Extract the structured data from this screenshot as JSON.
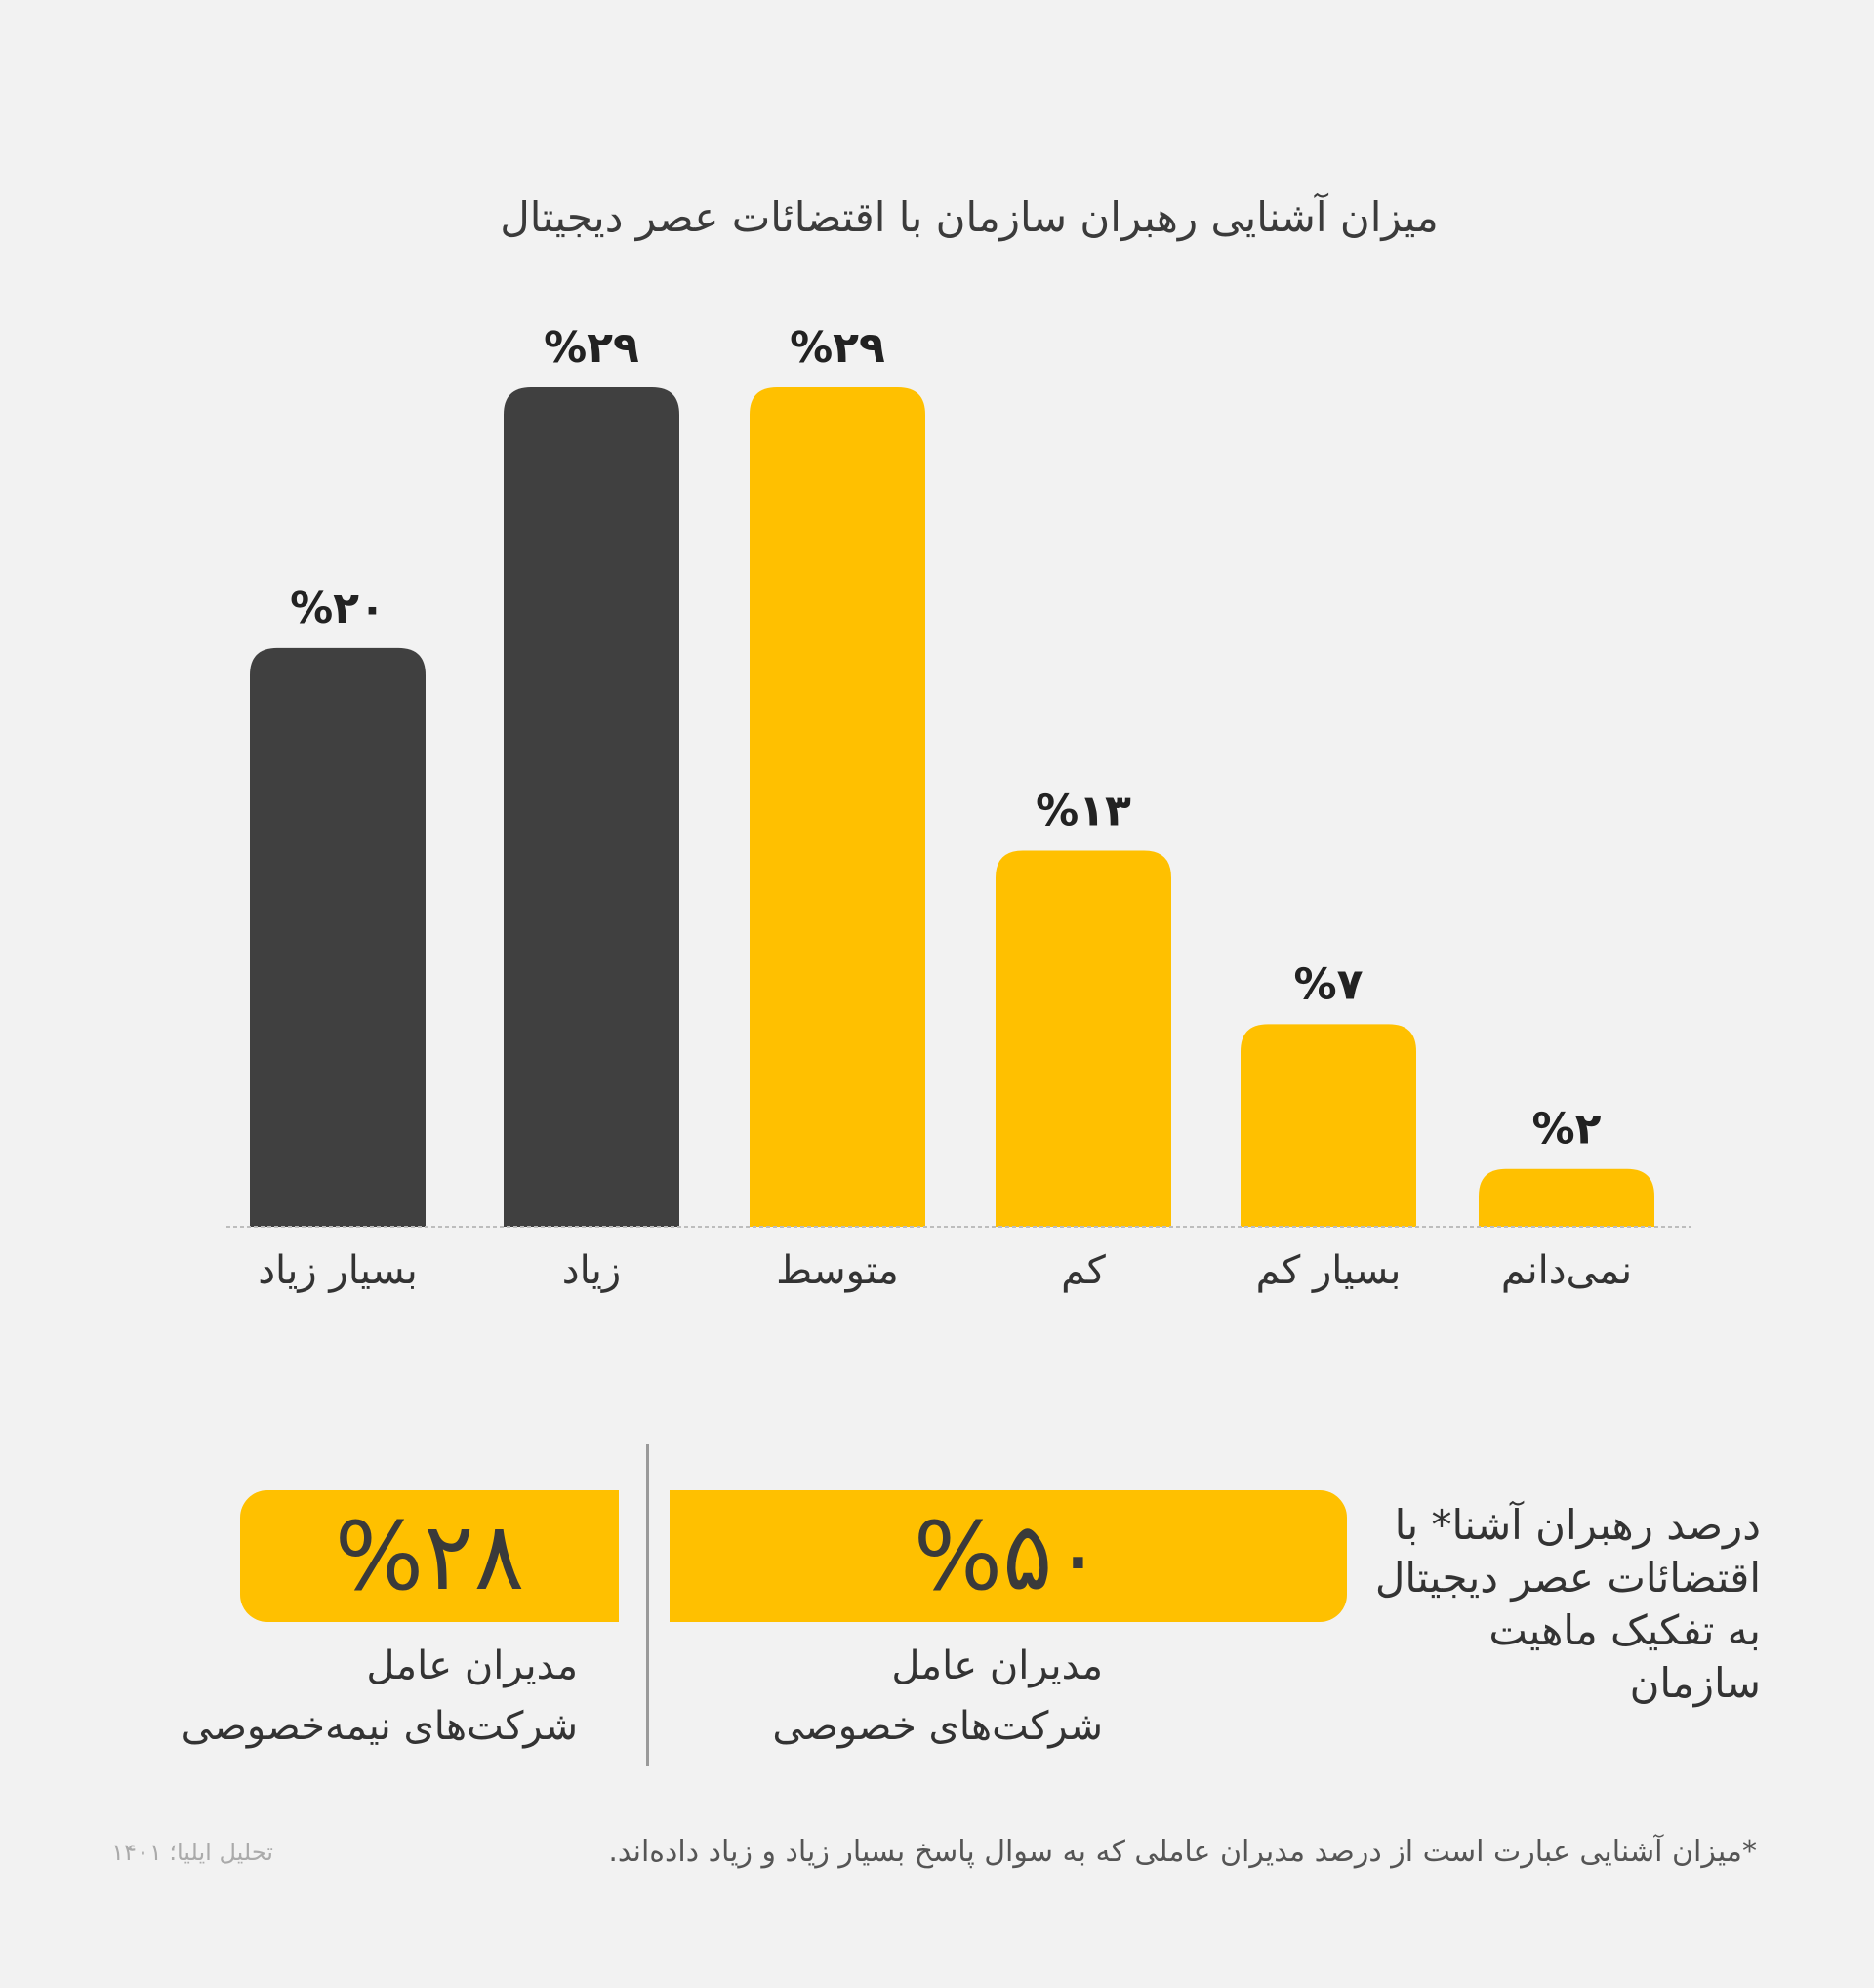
{
  "chart_data": {
    "type": "bar",
    "title": "میزان آشنایی رهبران سازمان با اقتضائات عصر دیجیتال",
    "categories": [
      "بسیار زیاد",
      "زیاد",
      "متوسط",
      "کم",
      "بسیار کم",
      "نمی‌دانم"
    ],
    "values": [
      20,
      29,
      29,
      13,
      7,
      2
    ],
    "value_labels": [
      "%۲۰",
      "%۲۹",
      "%۲۹",
      "%۱۳",
      "%۷",
      "%۲"
    ],
    "colors": [
      "#404040",
      "#404040",
      "#ffc000",
      "#ffc000",
      "#ffc000",
      "#ffc000"
    ],
    "ylim": [
      0,
      29
    ],
    "xlabel": "",
    "ylabel": "",
    "grid": false,
    "legend": "none"
  },
  "summary": {
    "note": "درصد رهبران آشنا* با اقتضائات عصر دیجیتال به تفکیک ماهیت سازمان",
    "private": {
      "value": "%۵۰",
      "label_line1": "مدیران عامل",
      "label_line2": "شرکت‌های خصوصی"
    },
    "semi_private": {
      "value": "%۲۸",
      "label_line1": "مدیران عامل",
      "label_line2": "شرکت‌های نیمه‌خصوصی"
    }
  },
  "footnote": "*میزان آشنایی عبارت است از درصد مدیران عاملی که به سوال پاسخ بسیار زیاد و زیاد داده‌اند.",
  "source": "تحلیل ایلیا؛ ۱۴۰۱",
  "colors": {
    "accent": "#ffc000",
    "dark": "#404040",
    "background": "#f2f2f2"
  }
}
